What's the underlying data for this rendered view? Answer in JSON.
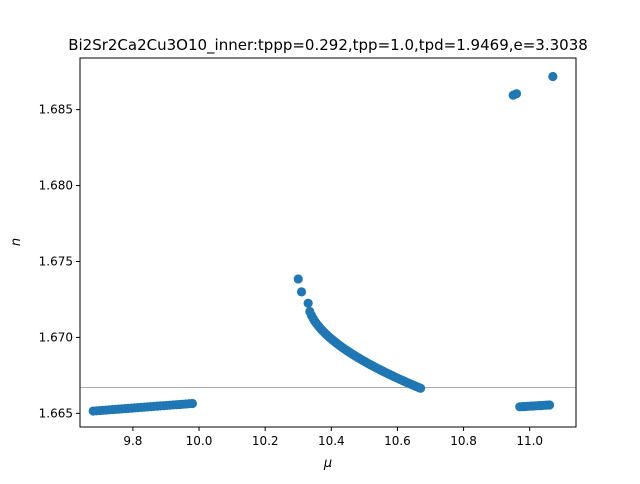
{
  "chart_data": {
    "type": "scatter",
    "title": "Bi2Sr2Ca2Cu3O10_inner:tppp=0.292,tpp=1.0,tpd=1.9469,e=3.3038",
    "xlabel": "μ",
    "ylabel": "n",
    "xlim": [
      9.64,
      11.14
    ],
    "ylim": [
      1.6641,
      1.6884
    ],
    "x_ticks": [
      9.8,
      10.0,
      10.2,
      10.4,
      10.6,
      10.8,
      11.0
    ],
    "x_tick_labels": [
      "9.8",
      "10.0",
      "10.2",
      "10.4",
      "10.6",
      "10.8",
      "11.0"
    ],
    "y_ticks": [
      1.665,
      1.67,
      1.675,
      1.68,
      1.685
    ],
    "y_tick_labels": [
      "1.665",
      "1.670",
      "1.675",
      "1.680",
      "1.685"
    ],
    "reference_line_y": 1.6667,
    "grid": false,
    "marker_color": "#1f77b4",
    "reference_line_color": "#aaaaaa",
    "segments": [
      {
        "x_start": 9.68,
        "x_end": 9.98,
        "y_start": 1.66515,
        "y_end": 1.66565,
        "count": 32
      },
      {
        "x_start": 10.33,
        "x_end": 10.67,
        "y_start": 1.67225,
        "y_end": 1.66665,
        "count": 70
      },
      {
        "x_start": 10.97,
        "x_end": 11.06,
        "y_start": 1.66543,
        "y_end": 1.66555,
        "count": 12
      }
    ],
    "points": [
      {
        "x": 10.3,
        "y": 1.67385
      },
      {
        "x": 10.31,
        "y": 1.673
      },
      {
        "x": 10.95,
        "y": 1.68595
      },
      {
        "x": 10.96,
        "y": 1.68605
      },
      {
        "x": 11.07,
        "y": 1.68718
      }
    ]
  }
}
